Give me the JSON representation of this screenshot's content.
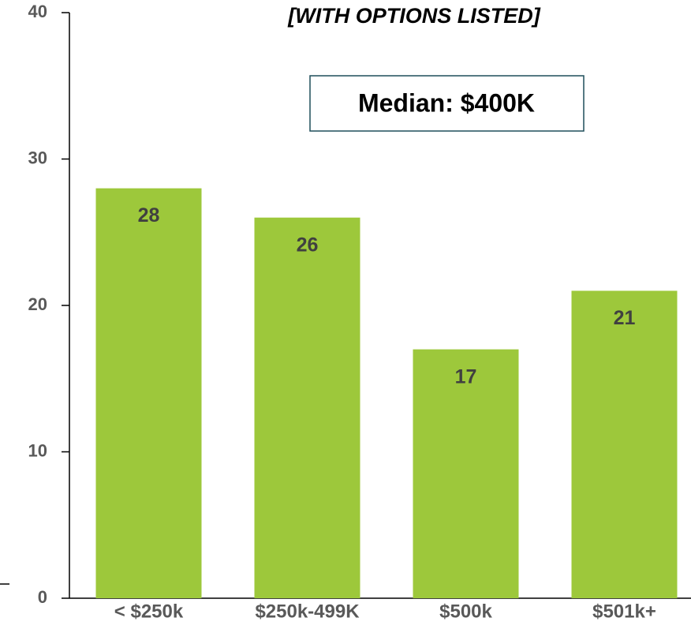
{
  "chart_data": {
    "type": "bar",
    "title": "[WITH OPTIONS LISTED]",
    "annotation": "Median: $400K",
    "categories": [
      "< $250k",
      "$250k-499K",
      "$500k",
      "$501k+"
    ],
    "values": [
      28,
      26,
      17,
      21
    ],
    "color": "#9dc83b",
    "ylim": [
      0,
      40
    ],
    "yticks": [
      0,
      10,
      20,
      30,
      40
    ],
    "grid": false
  }
}
